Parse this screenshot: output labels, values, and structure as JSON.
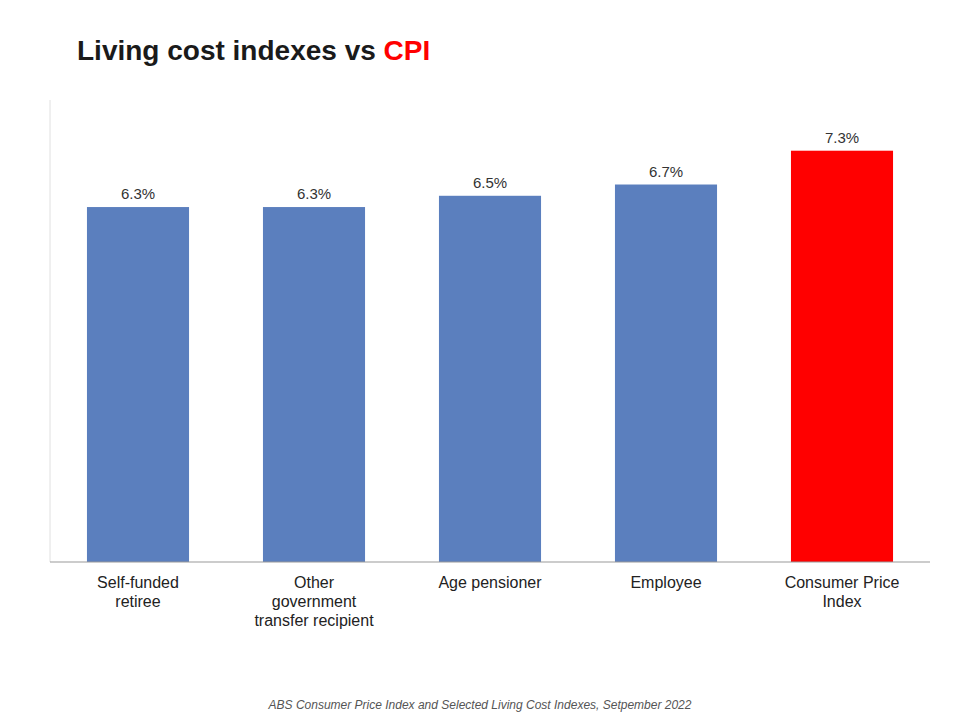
{
  "chart_data": {
    "type": "bar",
    "title": [
      {
        "text": "Living cost indexes vs ",
        "color": "#1a1a1a"
      },
      {
        "text": "CPI",
        "color": "#ff0000"
      }
    ],
    "categories": [
      "Self-funded\nretiree",
      "Other\ngovernment\ntransfer recipient",
      "Age pensioner",
      "Employee",
      "Consumer Price\nIndex"
    ],
    "values": [
      6.3,
      6.3,
      6.5,
      6.7,
      7.3
    ],
    "value_labels": [
      "6.3%",
      "6.3%",
      "6.5%",
      "6.7%",
      "7.3%"
    ],
    "data_labels": true,
    "colors": [
      "#5b7fbe",
      "#5b7fbe",
      "#5b7fbe",
      "#5b7fbe",
      "#ff0000"
    ],
    "ylim": [
      0,
      8.2
    ],
    "grid": false,
    "tick_labels": "x",
    "annotations": [
      "ABS Consumer Price Index and Selected Living Cost Indexes, Setpember 2022"
    ]
  }
}
